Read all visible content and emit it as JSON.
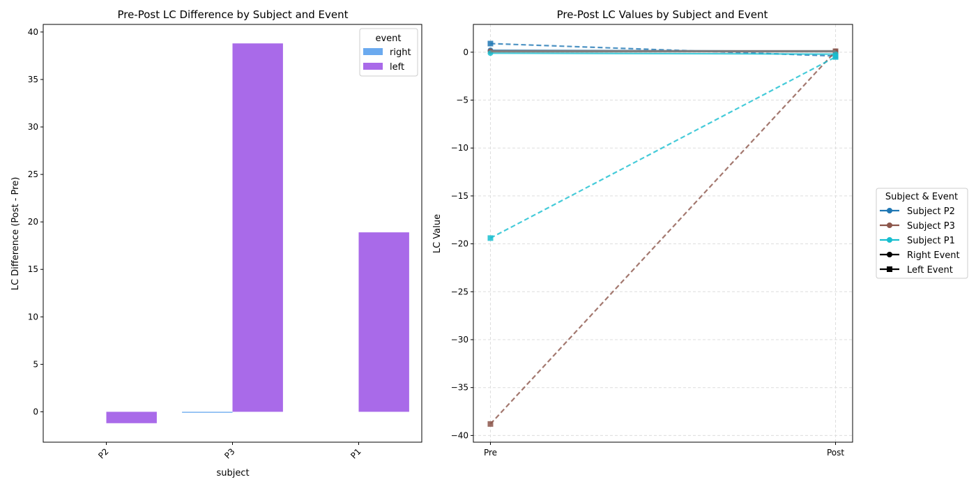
{
  "chart_data": [
    {
      "type": "bar",
      "title": "Pre-Post LC Difference by Subject and Event",
      "xlabel": "subject",
      "ylabel": "LC Difference (Post - Pre)",
      "categories": [
        "P2",
        "P3",
        "P1"
      ],
      "series": [
        {
          "name": "right",
          "color": "#6baaef",
          "values": [
            null,
            -0.1,
            null
          ]
        },
        {
          "name": "left",
          "color": "#a96ae9",
          "values": [
            -1.2,
            38.8,
            18.9
          ]
        }
      ],
      "ylim": [
        -3.2,
        40.8
      ],
      "yticks": [
        0,
        5,
        10,
        15,
        20,
        25,
        30,
        35,
        40
      ],
      "grid": false,
      "legend": {
        "title": "event",
        "placement": "top-right"
      }
    },
    {
      "type": "line",
      "title": "Pre-Post LC Values by Subject and Event",
      "xlabel": "",
      "ylabel": "LC Value",
      "x": [
        "Pre",
        "Post"
      ],
      "series": [
        {
          "subject": "P2",
          "event": "right",
          "color": "#1f77b4",
          "values": [
            0.2,
            0.1
          ]
        },
        {
          "subject": "P2",
          "event": "left",
          "color": "#1f77b4",
          "values": [
            0.9,
            -0.4
          ]
        },
        {
          "subject": "P3",
          "event": "right",
          "color": "#8c564b",
          "values": [
            0.1,
            0.1
          ]
        },
        {
          "subject": "P3",
          "event": "left",
          "color": "#8c564b",
          "values": [
            -38.8,
            0.1
          ]
        },
        {
          "subject": "P1",
          "event": "right",
          "color": "#17becf",
          "values": [
            -0.1,
            -0.2
          ]
        },
        {
          "subject": "P1",
          "event": "left",
          "color": "#17becf",
          "values": [
            -19.4,
            -0.5
          ]
        },
        {
          "subject": "",
          "event": "",
          "color": "#7f7f7f",
          "values": [
            0.1,
            0.1
          ]
        }
      ],
      "ylim": [
        -40.7,
        2.9
      ],
      "yticks": [
        0,
        -5,
        -10,
        -15,
        -20,
        -25,
        -30,
        -35,
        -40
      ],
      "grid": true,
      "legend": {
        "title": "Subject & Event",
        "placement": "outside-right",
        "entries": [
          {
            "label": "Subject P2",
            "color": "#1f77b4",
            "marker": "circle"
          },
          {
            "label": "Subject P3",
            "color": "#8c564b",
            "marker": "circle"
          },
          {
            "label": "Subject P1",
            "color": "#17becf",
            "marker": "circle"
          },
          {
            "label": "Right Event",
            "color": "#000000",
            "marker": "circle"
          },
          {
            "label": "Left Event",
            "color": "#000000",
            "marker": "square"
          }
        ]
      }
    }
  ]
}
